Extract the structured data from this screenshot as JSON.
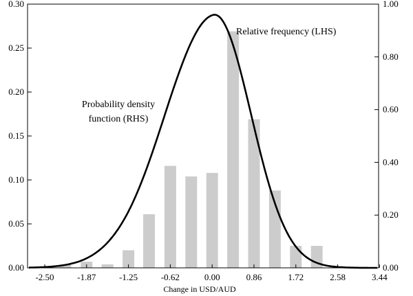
{
  "chart_data": {
    "type": "bar",
    "xlabel": "Change in USD/AUD",
    "x_tick_labels": [
      "-2.50",
      "-1.87",
      "-1.25",
      "-0.62",
      "0.00",
      "0.86",
      "1.72",
      "2.58",
      "3.44"
    ],
    "left_axis": {
      "ylim": [
        0,
        0.3
      ],
      "tick_labels": [
        "0.00",
        "0.05",
        "0.10",
        "0.15",
        "0.20",
        "0.25",
        "0.30"
      ]
    },
    "right_axis": {
      "ylim": [
        0,
        1.0
      ],
      "tick_labels": [
        "0.00",
        "0.20",
        "0.40",
        "0.60",
        "0.80",
        "1.00"
      ]
    },
    "series": [
      {
        "name": "Relative frequency (LHS)",
        "type": "bar",
        "axis": "left",
        "color": "#cccccc",
        "x": [
          -2.19,
          -1.87,
          -1.56,
          -1.25,
          -0.94,
          -0.62,
          -0.31,
          0.0,
          0.43,
          0.86,
          1.29,
          1.72,
          2.15,
          2.58,
          3.01
        ],
        "values": [
          0.004,
          0.007,
          0.004,
          0.02,
          0.061,
          0.116,
          0.104,
          0.108,
          0.269,
          0.169,
          0.088,
          0.025,
          0.025,
          0.0,
          0.0
        ]
      },
      {
        "name": "Probability density function (RHS)",
        "type": "line",
        "axis": "right",
        "color": "#000000",
        "mean": 0.05,
        "sd": 0.75,
        "peak": 0.96
      }
    ],
    "annotations": [
      {
        "text": "Relative frequency (LHS)",
        "lines": [
          "Relative frequency (LHS)"
        ]
      },
      {
        "text": "Probability density function (RHS)",
        "lines": [
          "Probability density",
          "function (RHS)"
        ]
      }
    ],
    "grid": false
  }
}
